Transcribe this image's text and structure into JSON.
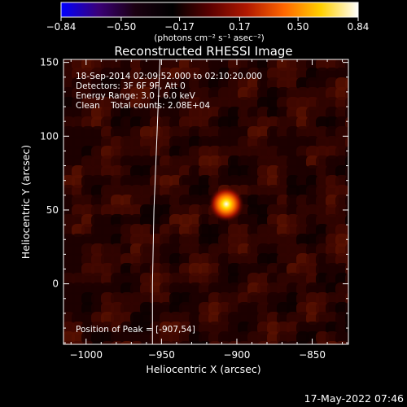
{
  "chart_data": {
    "type": "heatmap",
    "title": "Reconstructed RHESSI Image",
    "xlabel": "Heliocentric X (arcsec)",
    "ylabel": "Heliocentric Y (arcsec)",
    "xlim": [
      -1015,
      -826
    ],
    "ylim": [
      -41,
      152
    ],
    "x_ticks": [
      -1000,
      -950,
      -900,
      -850
    ],
    "x_tick_labels": [
      "−1000",
      "−950",
      "−900",
      "−850"
    ],
    "y_ticks": [
      0,
      50,
      100,
      150
    ],
    "y_tick_labels": [
      "0",
      "50",
      "100",
      "150"
    ],
    "peak": {
      "x": -907,
      "y": 54,
      "value": 0.84
    },
    "limb_line_x": [
      -951,
      -953,
      -955,
      -956,
      -956
    ],
    "limb_line_y": [
      152,
      100,
      50,
      0,
      -41
    ],
    "info_lines": [
      "18-Sep-2014 02:09:52.000 to 02:10:20.000",
      "Detectors: 3F 6F 9F, Att 0",
      "Energy Range: 3.0 - 6.0 keV",
      "Clean    Total counts: 2.08E+04"
    ],
    "peak_label": "Position of Peak = [-907,54]",
    "colorbar": {
      "range": [
        -0.84,
        0.84
      ],
      "tick_values": [
        -0.84,
        -0.5,
        -0.17,
        0.17,
        0.5,
        0.84
      ],
      "tick_labels": [
        "−0.84",
        "−0.50",
        "−0.17",
        "0.17",
        "0.50",
        "0.84"
      ],
      "units_label": "(photons cm⁻² s⁻¹ asec⁻²)",
      "colors": [
        "#0000ff",
        "#3a0078",
        "#1a0010",
        "#000000",
        "#5a0000",
        "#b01800",
        "#ff6600",
        "#ffd000",
        "#ffffff"
      ]
    },
    "grid": false,
    "legend": "none"
  },
  "timestamp": "17-May-2022 07:46"
}
